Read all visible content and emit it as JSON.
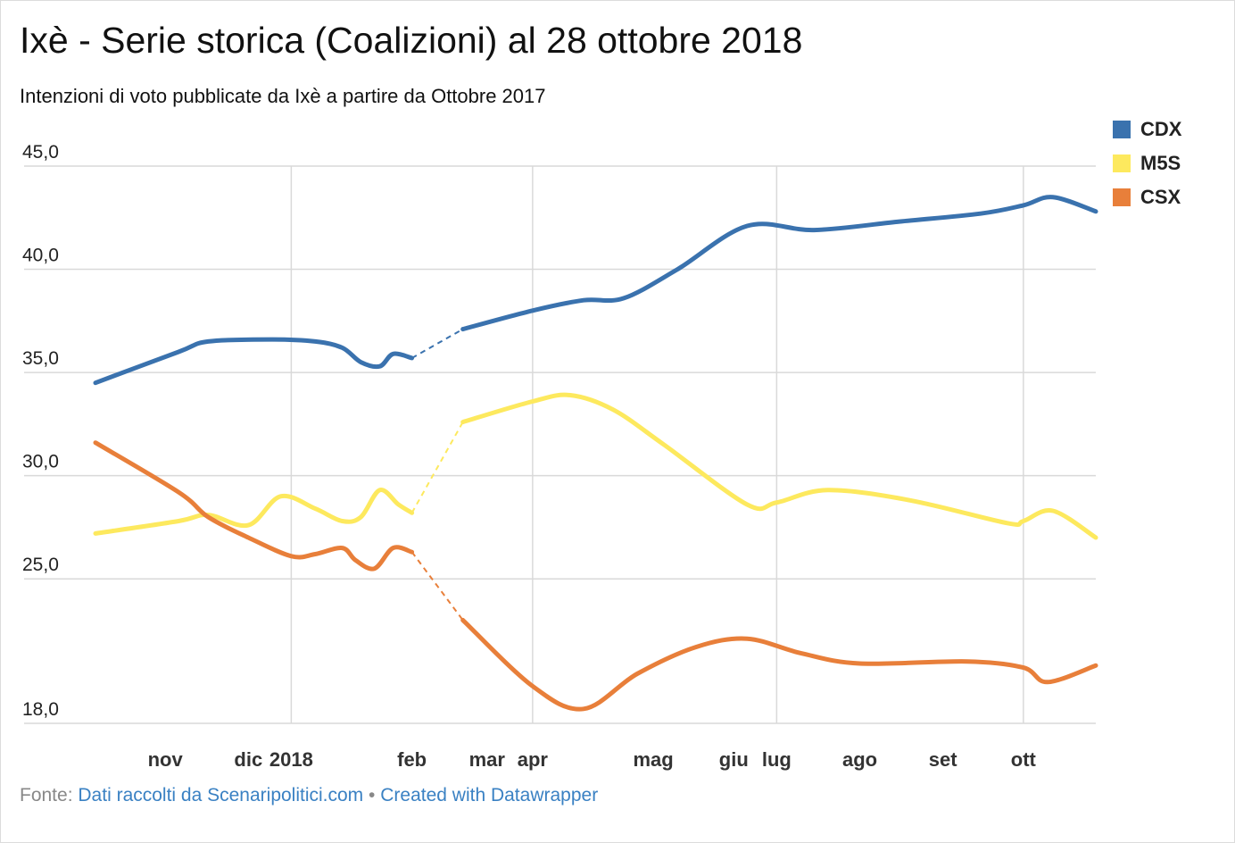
{
  "title": "Ixè - Serie storica (Coalizioni) al 28 ottobre 2018",
  "subtitle": "Intenzioni di voto pubblicate da Ixè a partire da Ottobre 2017",
  "footer": {
    "source_label": "Fonte:",
    "source_link": "Dati raccolti da Scenaripolitici.com",
    "separator": "•",
    "created_link": "Created with Datawrapper"
  },
  "chart_data": {
    "type": "line",
    "title": "Ixè - Serie storica (Coalizioni) al 28 ottobre 2018",
    "ylim": [
      18,
      45
    ],
    "yticks": [
      {
        "value": 18,
        "label": "18,0"
      },
      {
        "value": 25,
        "label": "25,0"
      },
      {
        "value": 30,
        "label": "30,0"
      },
      {
        "value": 35,
        "label": "35,0"
      },
      {
        "value": 40,
        "label": "40,0"
      },
      {
        "value": 45,
        "label": "45,0"
      }
    ],
    "xlim": [
      "2017-10-20",
      "2018-10-28"
    ],
    "xgrid": [
      "2018-01-01",
      "2018-04-01",
      "2018-07-01",
      "2018-10-01"
    ],
    "xticks": [
      {
        "date": "2017-11-15",
        "label": "nov"
      },
      {
        "date": "2017-12-16",
        "label": "dic"
      },
      {
        "date": "2018-01-01",
        "label": "2018"
      },
      {
        "date": "2018-02-15",
        "label": "feb"
      },
      {
        "date": "2018-03-15",
        "label": "mar"
      },
      {
        "date": "2018-04-01",
        "label": "apr"
      },
      {
        "date": "2018-05-16",
        "label": "mag"
      },
      {
        "date": "2018-06-15",
        "label": "giu"
      },
      {
        "date": "2018-07-01",
        "label": "lug"
      },
      {
        "date": "2018-08-01",
        "label": "ago"
      },
      {
        "date": "2018-09-01",
        "label": "set"
      },
      {
        "date": "2018-10-01",
        "label": "ott"
      }
    ],
    "gap": [
      "2018-02-15",
      "2018-03-06"
    ],
    "grid": true,
    "legend_position": "top-right",
    "series": [
      {
        "name": "CDX",
        "color": "#3a72ae",
        "points": [
          [
            "2017-10-20",
            34.5
          ],
          [
            "2017-11-20",
            36.0
          ],
          [
            "2017-12-01",
            36.5
          ],
          [
            "2017-12-25",
            36.6
          ],
          [
            "2018-01-10",
            36.5
          ],
          [
            "2018-01-20",
            36.2
          ],
          [
            "2018-01-27",
            35.5
          ],
          [
            "2018-02-03",
            35.3
          ],
          [
            "2018-02-08",
            35.9
          ],
          [
            "2018-02-15",
            35.7
          ],
          [
            "2018-03-06",
            37.1
          ],
          [
            "2018-04-01",
            38.0
          ],
          [
            "2018-04-20",
            38.5
          ],
          [
            "2018-05-05",
            38.6
          ],
          [
            "2018-05-25",
            40.0
          ],
          [
            "2018-06-20",
            42.1
          ],
          [
            "2018-07-15",
            41.9
          ],
          [
            "2018-08-15",
            42.3
          ],
          [
            "2018-09-15",
            42.7
          ],
          [
            "2018-10-01",
            43.1
          ],
          [
            "2018-10-12",
            43.5
          ],
          [
            "2018-10-28",
            42.8
          ]
        ]
      },
      {
        "name": "M5S",
        "color": "#fde95e",
        "points": [
          [
            "2017-10-20",
            27.2
          ],
          [
            "2017-11-20",
            27.8
          ],
          [
            "2017-12-01",
            28.1
          ],
          [
            "2017-12-16",
            27.6
          ],
          [
            "2017-12-28",
            29.0
          ],
          [
            "2018-01-10",
            28.4
          ],
          [
            "2018-01-20",
            27.8
          ],
          [
            "2018-01-27",
            28.0
          ],
          [
            "2018-02-03",
            29.3
          ],
          [
            "2018-02-10",
            28.6
          ],
          [
            "2018-02-15",
            28.2
          ],
          [
            "2018-03-06",
            32.6
          ],
          [
            "2018-04-01",
            33.6
          ],
          [
            "2018-04-15",
            33.9
          ],
          [
            "2018-05-01",
            33.2
          ],
          [
            "2018-05-20",
            31.5
          ],
          [
            "2018-06-20",
            28.6
          ],
          [
            "2018-07-01",
            28.7
          ],
          [
            "2018-07-20",
            29.3
          ],
          [
            "2018-08-20",
            28.8
          ],
          [
            "2018-09-25",
            27.7
          ],
          [
            "2018-10-01",
            27.8
          ],
          [
            "2018-10-12",
            28.3
          ],
          [
            "2018-10-28",
            27.0
          ]
        ]
      },
      {
        "name": "CSX",
        "color": "#e87f3a",
        "points": [
          [
            "2017-10-20",
            31.6
          ],
          [
            "2017-11-20",
            29.2
          ],
          [
            "2017-12-01",
            28.0
          ],
          [
            "2017-12-16",
            27.0
          ],
          [
            "2018-01-01",
            26.1
          ],
          [
            "2018-01-10",
            26.2
          ],
          [
            "2018-01-20",
            26.5
          ],
          [
            "2018-01-25",
            25.9
          ],
          [
            "2018-02-01",
            25.5
          ],
          [
            "2018-02-08",
            26.5
          ],
          [
            "2018-02-15",
            26.3
          ],
          [
            "2018-03-06",
            23.0
          ],
          [
            "2018-04-01",
            19.8
          ],
          [
            "2018-04-20",
            18.7
          ],
          [
            "2018-05-10",
            20.4
          ],
          [
            "2018-06-01",
            21.7
          ],
          [
            "2018-06-20",
            22.1
          ],
          [
            "2018-07-10",
            21.4
          ],
          [
            "2018-08-01",
            20.9
          ],
          [
            "2018-09-10",
            21.0
          ],
          [
            "2018-10-01",
            20.7
          ],
          [
            "2018-10-10",
            20.0
          ],
          [
            "2018-10-28",
            20.8
          ]
        ]
      }
    ]
  }
}
